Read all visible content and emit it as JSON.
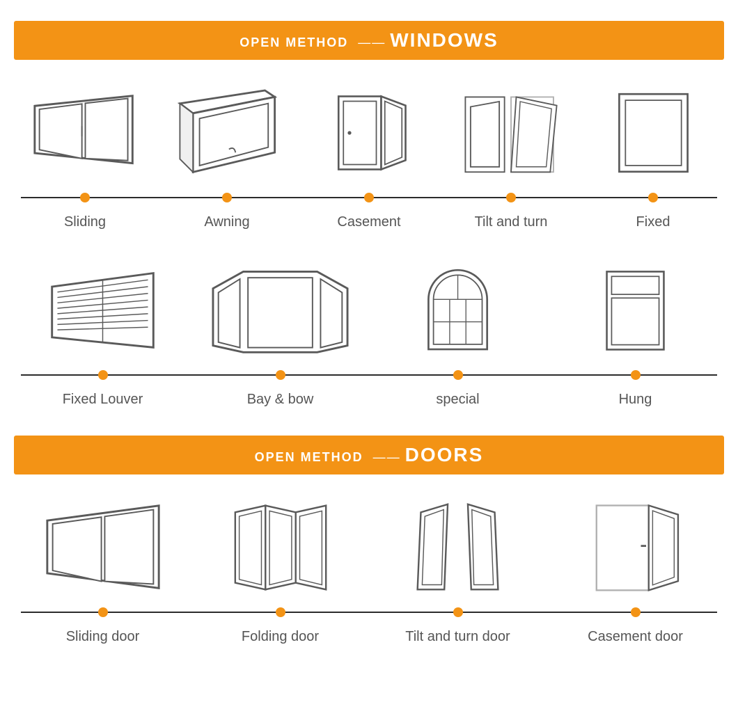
{
  "colors": {
    "accent": "#f39315",
    "line_color": "#2b2b2b",
    "background": "#ffffff",
    "label_color": "#555555",
    "header_text_color": "#ffffff",
    "dot_color": "#f39315",
    "stroke": "#5a5a5a",
    "stroke_light": "#b0b0b0"
  },
  "typography": {
    "header_prefix_fontsize": 18,
    "header_main_fontsize": 28,
    "label_fontsize": 20
  },
  "sections": [
    {
      "id": "windows",
      "header_prefix": "OPEN METHOD",
      "header_dashes": "——",
      "header_main": "WINDOWS",
      "rows": [
        {
          "count": 5,
          "items": [
            {
              "label": "Sliding",
              "icon": "sliding-window"
            },
            {
              "label": "Awning",
              "icon": "awning-window"
            },
            {
              "label": "Casement",
              "icon": "casement-window"
            },
            {
              "label": "Tilt and turn",
              "icon": "tilt-turn-window"
            },
            {
              "label": "Fixed",
              "icon": "fixed-window"
            }
          ]
        },
        {
          "count": 4,
          "items": [
            {
              "label": "Fixed Louver",
              "icon": "louver-window"
            },
            {
              "label": "Bay & bow",
              "icon": "bay-window"
            },
            {
              "label": "special",
              "icon": "special-window"
            },
            {
              "label": "Hung",
              "icon": "hung-window"
            }
          ]
        }
      ]
    },
    {
      "id": "doors",
      "header_prefix": "OPEN METHOD",
      "header_dashes": "——",
      "header_main": "DOORS",
      "rows": [
        {
          "count": 4,
          "items": [
            {
              "label": "Sliding door",
              "icon": "sliding-door"
            },
            {
              "label": "Folding door",
              "icon": "folding-door"
            },
            {
              "label": "Tilt and turn door",
              "icon": "tilt-turn-door"
            },
            {
              "label": "Casement door",
              "icon": "casement-door"
            }
          ]
        }
      ]
    }
  ]
}
